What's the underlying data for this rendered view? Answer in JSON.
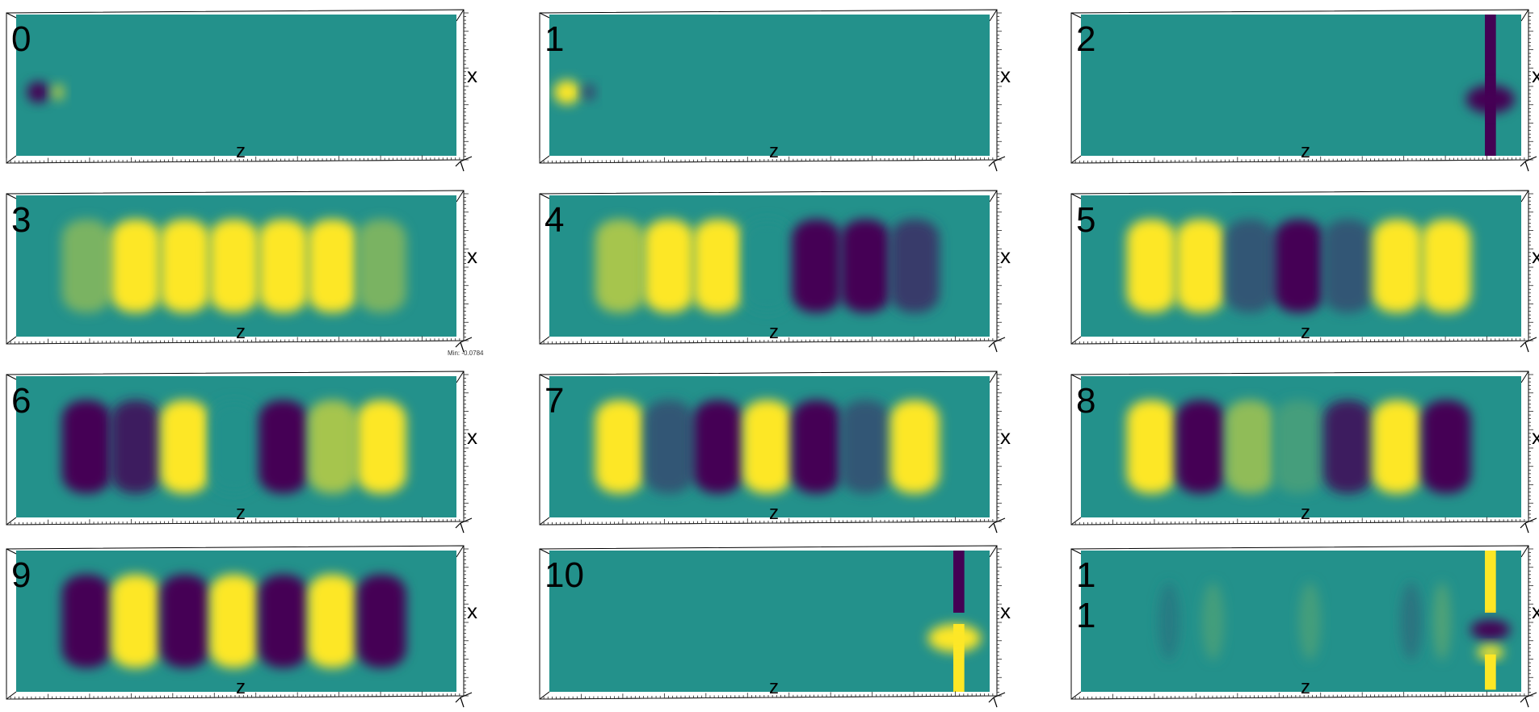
{
  "colors": {
    "background_field": "#23918b",
    "positive": "#fde725",
    "negative": "#440154",
    "weak_positive": "#6cce59",
    "weak_negative": "#3b528b",
    "frame": "#000000"
  },
  "axis_labels": {
    "horizontal": "z",
    "vertical": "x"
  },
  "stray_text": "Min: -0.0784",
  "panels": [
    {
      "label": "0",
      "features": [
        {
          "kind": "blob",
          "z": 0.05,
          "x": 0.55,
          "w": 0.05,
          "h": 0.15,
          "value": -1
        },
        {
          "kind": "blob",
          "z": 0.095,
          "x": 0.55,
          "w": 0.03,
          "h": 0.12,
          "value": 0.6
        }
      ]
    },
    {
      "label": "1",
      "features": [
        {
          "kind": "blob",
          "z": 0.04,
          "x": 0.55,
          "w": 0.06,
          "h": 0.17,
          "value": 1
        },
        {
          "kind": "blob",
          "z": 0.09,
          "x": 0.55,
          "w": 0.03,
          "h": 0.12,
          "value": -0.5
        }
      ]
    },
    {
      "label": "2",
      "features": [
        {
          "kind": "bar",
          "z": 0.93,
          "x": 0.5,
          "w": 0.025,
          "h": 1.0,
          "value": -1
        },
        {
          "kind": "blob",
          "z": 0.93,
          "x": 0.6,
          "w": 0.11,
          "h": 0.2,
          "value": -1
        }
      ]
    },
    {
      "label": "3",
      "values": [
        0.4,
        1,
        1,
        1,
        1,
        1,
        0.4
      ]
    },
    {
      "label": "4",
      "values": [
        0.6,
        1,
        1,
        0,
        -1,
        -1,
        -0.6
      ]
    },
    {
      "label": "5",
      "values": [
        1,
        1,
        -0.4,
        -1,
        -0.4,
        1,
        1
      ]
    },
    {
      "label": "6",
      "values": [
        -1,
        -0.8,
        1,
        0,
        -1,
        0.6,
        1
      ]
    },
    {
      "label": "7",
      "values": [
        1,
        -0.4,
        -1,
        1,
        -1,
        -0.4,
        1
      ]
    },
    {
      "label": "8",
      "values": [
        1,
        -1,
        0.5,
        0.15,
        -0.8,
        1,
        -1
      ]
    },
    {
      "label": "9",
      "values": [
        -1,
        1,
        -1,
        1,
        -1,
        1,
        -1
      ]
    },
    {
      "label": "10",
      "features": [
        {
          "kind": "bar",
          "z": 0.93,
          "x": 0.22,
          "w": 0.025,
          "h": 0.44,
          "value": -1
        },
        {
          "kind": "bar",
          "z": 0.93,
          "x": 0.76,
          "w": 0.025,
          "h": 0.48,
          "value": 1
        },
        {
          "kind": "blob",
          "z": 0.92,
          "x": 0.62,
          "w": 0.12,
          "h": 0.2,
          "value": 1
        }
      ]
    },
    {
      "label": "1\n1",
      "features": [
        {
          "kind": "bar",
          "z": 0.93,
          "x": 0.22,
          "w": 0.025,
          "h": 0.44,
          "value": 1
        },
        {
          "kind": "blob",
          "z": 0.93,
          "x": 0.56,
          "w": 0.09,
          "h": 0.14,
          "value": -1
        },
        {
          "kind": "blob",
          "z": 0.93,
          "x": 0.72,
          "w": 0.06,
          "h": 0.1,
          "value": 1
        },
        {
          "kind": "bar",
          "z": 0.93,
          "x": 0.86,
          "w": 0.025,
          "h": 0.25,
          "value": 1
        },
        {
          "kind": "blob",
          "z": 0.2,
          "x": 0.5,
          "w": 0.05,
          "h": 0.55,
          "value": -0.15
        },
        {
          "kind": "blob",
          "z": 0.3,
          "x": 0.5,
          "w": 0.05,
          "h": 0.55,
          "value": 0.15
        },
        {
          "kind": "blob",
          "z": 0.52,
          "x": 0.5,
          "w": 0.05,
          "h": 0.55,
          "value": 0.15
        },
        {
          "kind": "blob",
          "z": 0.75,
          "x": 0.5,
          "w": 0.05,
          "h": 0.55,
          "value": -0.2
        },
        {
          "kind": "blob",
          "z": 0.82,
          "x": 0.5,
          "w": 0.04,
          "h": 0.55,
          "value": 0.2
        }
      ]
    }
  ]
}
